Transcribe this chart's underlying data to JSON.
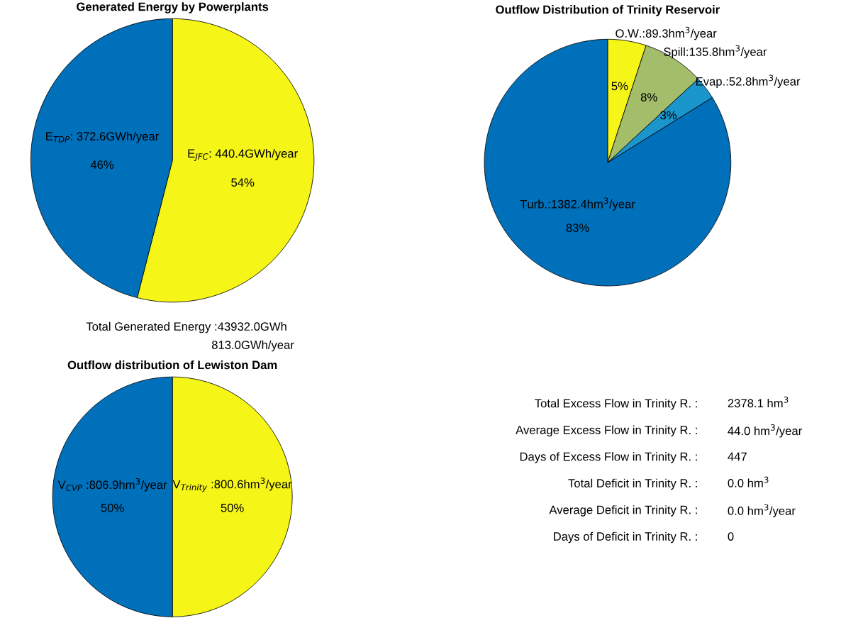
{
  "chart_data": [
    {
      "type": "pie",
      "title": "Generated Energy by Powerplants",
      "categories": [
        "E$_{JFC}$: 440.4GWh/year",
        "E$_{TDP}$: 372.6GWh/year"
      ],
      "values": [
        54,
        46
      ],
      "colors": [
        "#f5f518",
        "#0070bb"
      ],
      "value_labels": [
        "54%",
        "46%"
      ],
      "annotations": [
        "Total Generated Energy :43932.0GWh",
        "813.0GWh/year"
      ]
    },
    {
      "type": "pie",
      "title": "Outflow Distribution of Trinity Reservoir",
      "categories": [
        "O.W.:89.3hm$^{3}$/year",
        "Spill:135.8hm$^{3}$/year",
        "Evap.:52.8hm$^{3}$/year",
        "Turb.:1382.4hm$^{3}$/year"
      ],
      "values": [
        5,
        8,
        3,
        83
      ],
      "colors": [
        "#f5f518",
        "#a3bd6a",
        "#1a96cc",
        "#0070bb"
      ],
      "value_labels": [
        "5%",
        "8%",
        "3%",
        "83%"
      ]
    },
    {
      "type": "pie",
      "title": "Outflow distribution of Lewiston Dam",
      "categories": [
        "V$_{Trinity}$ :800.6hm$^{3}$/year",
        "V$_{CVP}$ :806.9hm$^{3}$/year"
      ],
      "values": [
        50,
        50
      ],
      "colors": [
        "#f5f518",
        "#0070bb"
      ],
      "value_labels": [
        "50%",
        "50%"
      ]
    },
    {
      "type": "other",
      "annotations": [
        "Total Excess Flow in Trinity R. :",
        "2378.1 hm$^{3}$",
        "Average Excess Flow in Trinity R. :",
        "44.0 hm$^{3}$/year",
        "Days of Excess Flow in Trinity R. :",
        "447",
        "Total Deficit in Trinity R. :",
        "0.0 hm$^{3}$",
        "Average Deficit in Trinity R. :",
        "0.0 hm$^{3}$/year",
        "Days of Deficit in Trinity R. :",
        "0"
      ]
    }
  ]
}
